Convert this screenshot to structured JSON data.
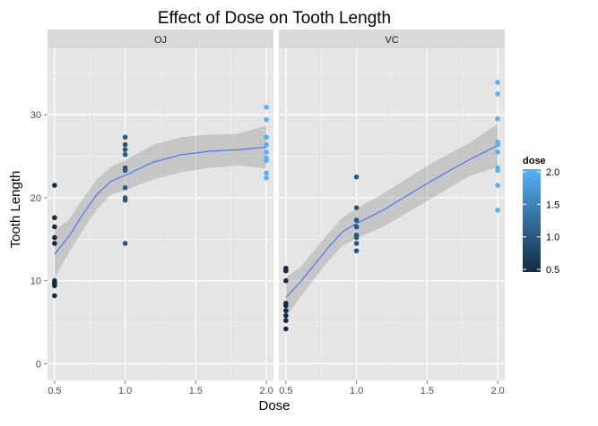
{
  "chart_data": {
    "type": "scatter",
    "title": "Effect of Dose on Tooth Length",
    "xlabel": "Dose",
    "ylabel": "Tooth Length",
    "xlim": [
      0.45,
      2.05
    ],
    "ylim": [
      -2,
      38
    ],
    "x_ticks": [
      {
        "value": 0.5,
        "label": "0.5"
      },
      {
        "value": 1.0,
        "label": "1.0"
      },
      {
        "value": 1.5,
        "label": "1.5"
      },
      {
        "value": 2.0,
        "label": "2.0"
      }
    ],
    "y_ticks": [
      {
        "value": 0,
        "label": "0"
      },
      {
        "value": 10,
        "label": "10"
      },
      {
        "value": 20,
        "label": "20"
      },
      {
        "value": 30,
        "label": "30"
      }
    ],
    "grid": true,
    "legend": {
      "title": "dose",
      "placement": "right",
      "labels": [
        {
          "value": 2.0,
          "label": "2.0"
        },
        {
          "value": 1.5,
          "label": "1.5"
        },
        {
          "value": 1.0,
          "label": "1.0"
        },
        {
          "value": 0.5,
          "label": "0.5"
        }
      ],
      "low_color": "#132b43",
      "high_color": "#56b1f7"
    },
    "panels": [
      {
        "name": "OJ",
        "points": [
          {
            "x": 0.5,
            "y": 15.2
          },
          {
            "x": 0.5,
            "y": 21.5
          },
          {
            "x": 0.5,
            "y": 17.6
          },
          {
            "x": 0.5,
            "y": 9.7
          },
          {
            "x": 0.5,
            "y": 14.5
          },
          {
            "x": 0.5,
            "y": 10.0
          },
          {
            "x": 0.5,
            "y": 8.2
          },
          {
            "x": 0.5,
            "y": 9.4
          },
          {
            "x": 0.5,
            "y": 16.5
          },
          {
            "x": 0.5,
            "y": 9.7
          },
          {
            "x": 1.0,
            "y": 19.7
          },
          {
            "x": 1.0,
            "y": 23.3
          },
          {
            "x": 1.0,
            "y": 23.6
          },
          {
            "x": 1.0,
            "y": 26.4
          },
          {
            "x": 1.0,
            "y": 20.0
          },
          {
            "x": 1.0,
            "y": 25.2
          },
          {
            "x": 1.0,
            "y": 25.8
          },
          {
            "x": 1.0,
            "y": 21.2
          },
          {
            "x": 1.0,
            "y": 14.5
          },
          {
            "x": 1.0,
            "y": 27.3
          },
          {
            "x": 2.0,
            "y": 25.5
          },
          {
            "x": 2.0,
            "y": 26.4
          },
          {
            "x": 2.0,
            "y": 22.4
          },
          {
            "x": 2.0,
            "y": 24.5
          },
          {
            "x": 2.0,
            "y": 24.8
          },
          {
            "x": 2.0,
            "y": 30.9
          },
          {
            "x": 2.0,
            "y": 26.4
          },
          {
            "x": 2.0,
            "y": 27.3
          },
          {
            "x": 2.0,
            "y": 29.4
          },
          {
            "x": 2.0,
            "y": 23.0
          }
        ],
        "smooth": [
          {
            "x": 0.5,
            "y": 13.2,
            "lo": 10.3,
            "hi": 16.1
          },
          {
            "x": 0.6,
            "y": 15.3,
            "lo": 13.3,
            "hi": 17.3
          },
          {
            "x": 0.7,
            "y": 18.0,
            "lo": 16.1,
            "hi": 19.9
          },
          {
            "x": 0.8,
            "y": 20.4,
            "lo": 18.6,
            "hi": 22.2
          },
          {
            "x": 0.9,
            "y": 22.0,
            "lo": 20.4,
            "hi": 23.7
          },
          {
            "x": 1.0,
            "y": 22.7,
            "lo": 20.9,
            "hi": 24.5
          },
          {
            "x": 1.2,
            "y": 24.3,
            "lo": 22.2,
            "hi": 26.4
          },
          {
            "x": 1.4,
            "y": 25.2,
            "lo": 23.1,
            "hi": 27.3
          },
          {
            "x": 1.6,
            "y": 25.6,
            "lo": 23.6,
            "hi": 27.6
          },
          {
            "x": 1.8,
            "y": 25.8,
            "lo": 23.9,
            "hi": 27.7
          },
          {
            "x": 2.0,
            "y": 26.1,
            "lo": 23.5,
            "hi": 28.7
          }
        ]
      },
      {
        "name": "VC",
        "points": [
          {
            "x": 0.5,
            "y": 4.2
          },
          {
            "x": 0.5,
            "y": 11.5
          },
          {
            "x": 0.5,
            "y": 7.3
          },
          {
            "x": 0.5,
            "y": 5.8
          },
          {
            "x": 0.5,
            "y": 6.4
          },
          {
            "x": 0.5,
            "y": 10.0
          },
          {
            "x": 0.5,
            "y": 11.2
          },
          {
            "x": 0.5,
            "y": 11.2
          },
          {
            "x": 0.5,
            "y": 5.2
          },
          {
            "x": 0.5,
            "y": 7.0
          },
          {
            "x": 1.0,
            "y": 16.5
          },
          {
            "x": 1.0,
            "y": 16.5
          },
          {
            "x": 1.0,
            "y": 15.2
          },
          {
            "x": 1.0,
            "y": 17.3
          },
          {
            "x": 1.0,
            "y": 22.5
          },
          {
            "x": 1.0,
            "y": 17.3
          },
          {
            "x": 1.0,
            "y": 13.6
          },
          {
            "x": 1.0,
            "y": 14.5
          },
          {
            "x": 1.0,
            "y": 18.8
          },
          {
            "x": 1.0,
            "y": 15.5
          },
          {
            "x": 2.0,
            "y": 23.6
          },
          {
            "x": 2.0,
            "y": 18.5
          },
          {
            "x": 2.0,
            "y": 33.9
          },
          {
            "x": 2.0,
            "y": 25.5
          },
          {
            "x": 2.0,
            "y": 26.4
          },
          {
            "x": 2.0,
            "y": 32.5
          },
          {
            "x": 2.0,
            "y": 26.7
          },
          {
            "x": 2.0,
            "y": 21.5
          },
          {
            "x": 2.0,
            "y": 23.3
          },
          {
            "x": 2.0,
            "y": 29.5
          }
        ],
        "smooth": [
          {
            "x": 0.5,
            "y": 8.0,
            "lo": 5.6,
            "hi": 10.4
          },
          {
            "x": 0.6,
            "y": 9.8,
            "lo": 8.0,
            "hi": 11.6
          },
          {
            "x": 0.7,
            "y": 11.9,
            "lo": 10.2,
            "hi": 13.6
          },
          {
            "x": 0.8,
            "y": 14.0,
            "lo": 12.4,
            "hi": 15.7
          },
          {
            "x": 0.9,
            "y": 15.9,
            "lo": 14.2,
            "hi": 17.6
          },
          {
            "x": 1.0,
            "y": 16.9,
            "lo": 15.1,
            "hi": 18.7
          },
          {
            "x": 1.2,
            "y": 18.6,
            "lo": 16.6,
            "hi": 20.6
          },
          {
            "x": 1.4,
            "y": 20.7,
            "lo": 18.6,
            "hi": 22.8
          },
          {
            "x": 1.6,
            "y": 22.7,
            "lo": 20.6,
            "hi": 24.8
          },
          {
            "x": 1.8,
            "y": 24.6,
            "lo": 22.6,
            "hi": 26.6
          },
          {
            "x": 2.0,
            "y": 26.3,
            "lo": 23.7,
            "hi": 28.9
          }
        ]
      }
    ]
  }
}
